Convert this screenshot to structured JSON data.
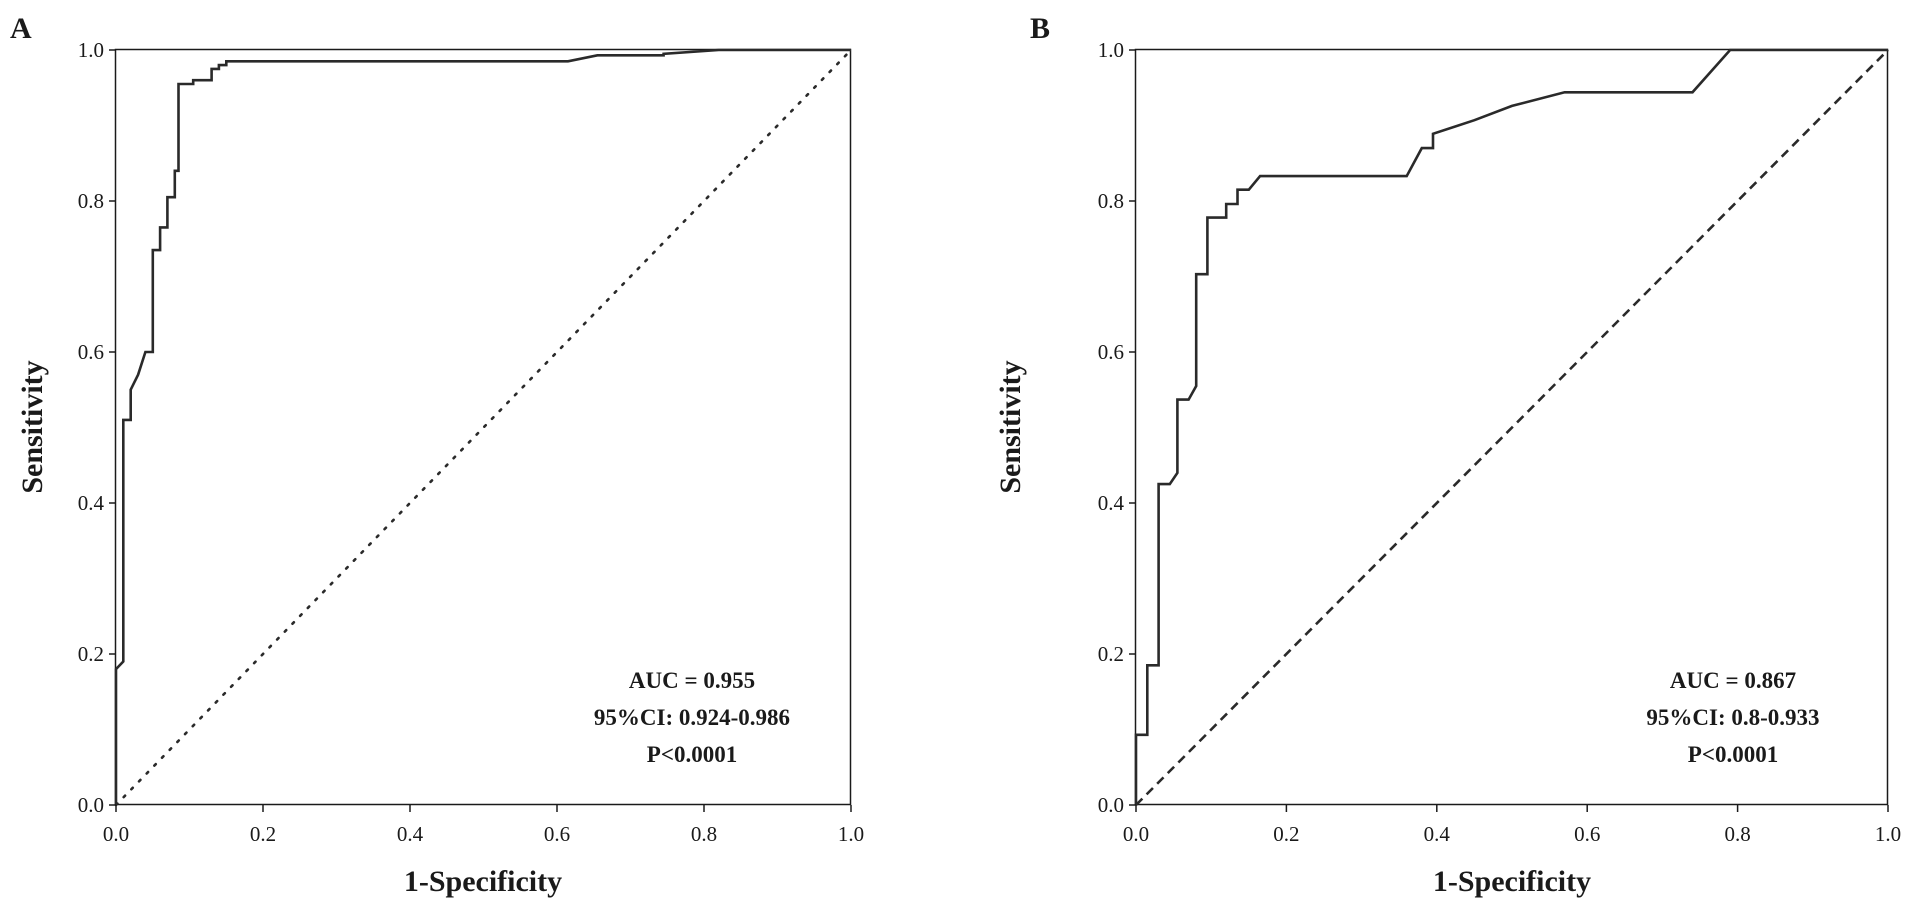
{
  "chart_data": [
    {
      "type": "line",
      "panel": "A",
      "xlabel": "1-Specificity",
      "ylabel": "Sensitivity",
      "xlim": [
        0,
        1
      ],
      "ylim": [
        0,
        1
      ],
      "xticks": [
        "0.0",
        "0.2",
        "0.4",
        "0.6",
        "0.8",
        "1.0"
      ],
      "yticks": [
        "0.0",
        "0.2",
        "0.4",
        "0.6",
        "0.8",
        "1.0"
      ],
      "annotations": [
        "AUC = 0.955",
        "95%CI: 0.924-0.986",
        "P<0.0001"
      ],
      "reference_line_style": "dotted",
      "series": [
        {
          "x": [
            0.0,
            0.0,
            0.01,
            0.01,
            0.02,
            0.02,
            0.025,
            0.03,
            0.04,
            0.05,
            0.05,
            0.06,
            0.06,
            0.07,
            0.07,
            0.08,
            0.08,
            0.085,
            0.085,
            0.105,
            0.105,
            0.13,
            0.13,
            0.14,
            0.14,
            0.15,
            0.15,
            0.615,
            0.655,
            0.745,
            0.745,
            0.82,
            1.0
          ],
          "y": [
            0.0,
            0.18,
            0.19,
            0.51,
            0.51,
            0.55,
            0.56,
            0.57,
            0.6,
            0.6,
            0.735,
            0.735,
            0.765,
            0.765,
            0.805,
            0.805,
            0.84,
            0.84,
            0.955,
            0.955,
            0.96,
            0.96,
            0.975,
            0.975,
            0.98,
            0.98,
            0.985,
            0.985,
            0.993,
            0.993,
            0.995,
            1.0,
            1.0
          ]
        }
      ]
    },
    {
      "type": "line",
      "panel": "B",
      "xlabel": "1-Specificity",
      "ylabel": "Sensitivity",
      "xlim": [
        0,
        1
      ],
      "ylim": [
        0,
        1
      ],
      "xticks": [
        "0.0",
        "0.2",
        "0.4",
        "0.6",
        "0.8",
        "1.0"
      ],
      "yticks": [
        "0.0",
        "0.2",
        "0.4",
        "0.6",
        "0.8",
        "1.0"
      ],
      "annotations": [
        "AUC = 0.867",
        "95%CI: 0.8-0.933",
        "P<0.0001"
      ],
      "reference_line_style": "dashed",
      "series": [
        {
          "x": [
            0.0,
            0.0,
            0.015,
            0.015,
            0.03,
            0.03,
            0.045,
            0.055,
            0.055,
            0.07,
            0.08,
            0.08,
            0.095,
            0.095,
            0.12,
            0.12,
            0.135,
            0.135,
            0.15,
            0.165,
            0.36,
            0.38,
            0.395,
            0.395,
            0.45,
            0.5,
            0.57,
            0.74,
            0.79,
            1.0
          ],
          "y": [
            0.0,
            0.093,
            0.093,
            0.185,
            0.185,
            0.425,
            0.425,
            0.44,
            0.537,
            0.537,
            0.555,
            0.703,
            0.703,
            0.778,
            0.778,
            0.796,
            0.796,
            0.815,
            0.815,
            0.833,
            0.833,
            0.87,
            0.87,
            0.889,
            0.907,
            0.926,
            0.944,
            0.944,
            1.0,
            1.0
          ]
        }
      ]
    }
  ]
}
